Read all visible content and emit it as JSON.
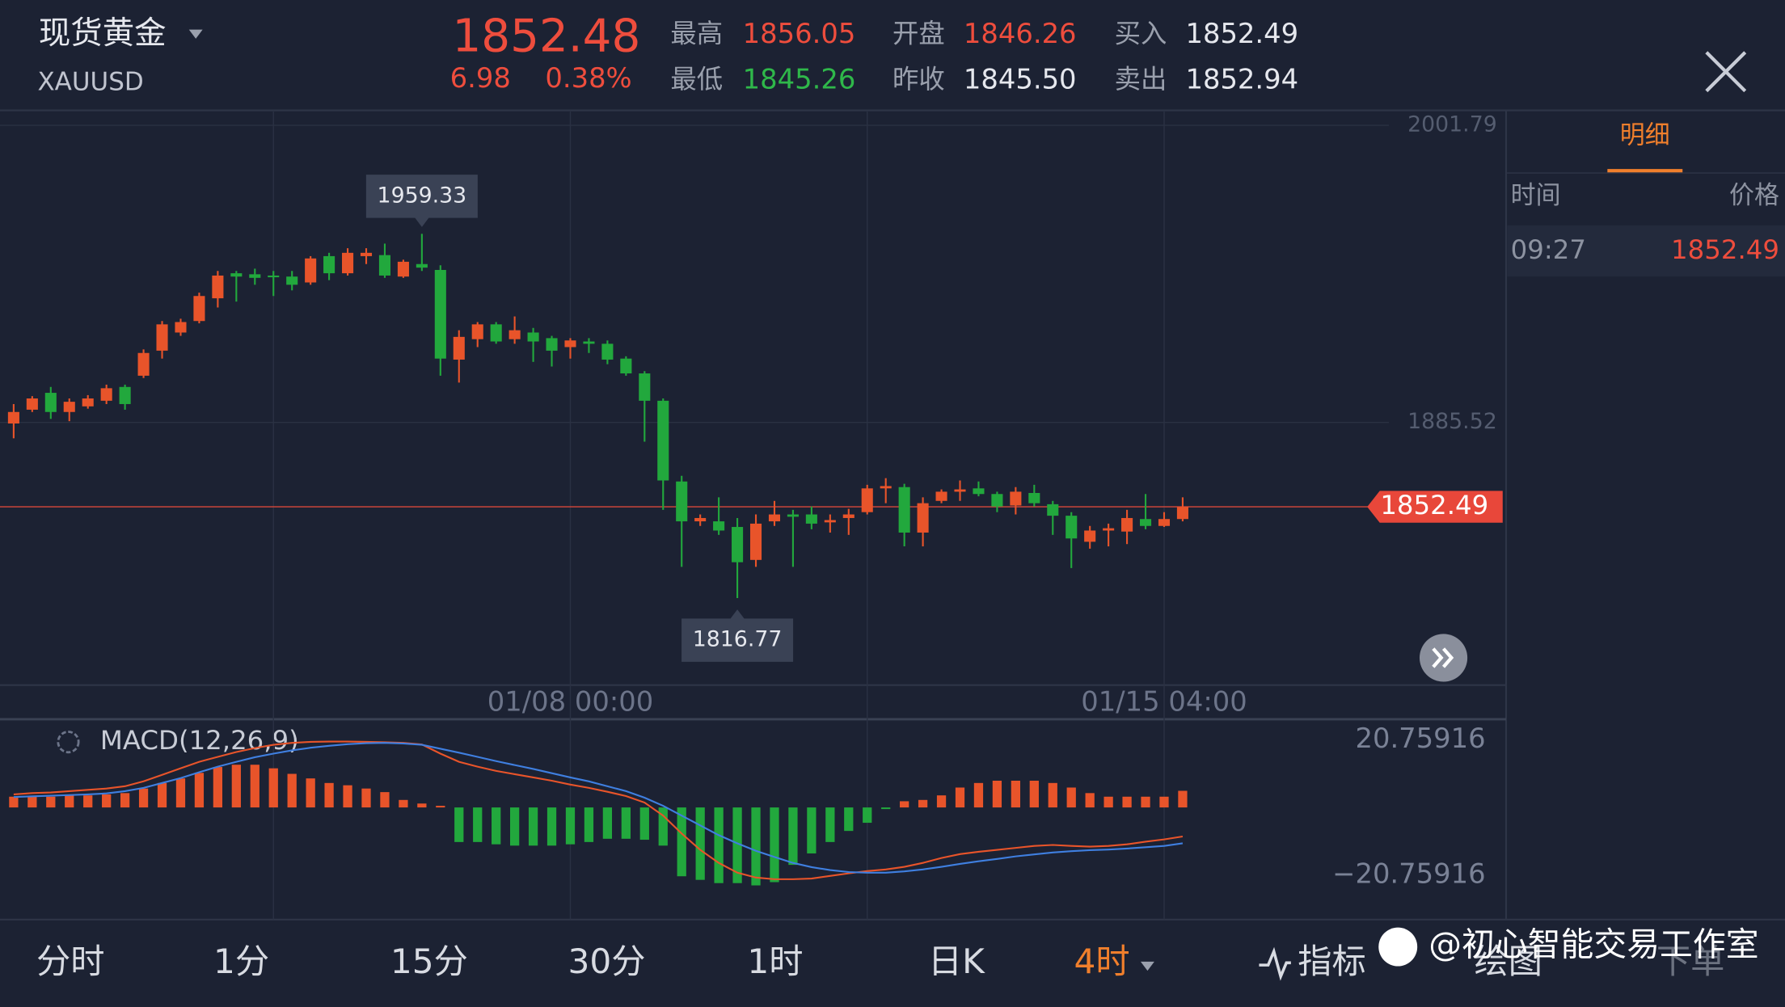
{
  "header": {
    "title": "现货黄金",
    "symbol": "XAUUSD",
    "price": "1852.48",
    "change": "6.98",
    "change_pct": "0.38%",
    "quotes": [
      {
        "label": "最高",
        "value": "1856.05"
      },
      {
        "label": "开盘",
        "value": "1846.26"
      },
      {
        "label": "买入",
        "value": "1852.49"
      },
      {
        "label": "最低",
        "value": "1845.26"
      },
      {
        "label": "昨收",
        "value": "1845.50"
      },
      {
        "label": "卖出",
        "value": "1852.94"
      }
    ]
  },
  "detail_panel": {
    "tab": "明细",
    "columns": [
      "时间",
      "价格"
    ],
    "rows": [
      [
        "09:27",
        "1852.49"
      ]
    ]
  },
  "tabs": [
    "分时",
    "1分",
    "15分",
    "30分",
    "1时",
    "日K",
    "4时"
  ],
  "tools": [
    "指标",
    "绘图",
    "下单"
  ],
  "watermark": "@初心智能交易工作室",
  "chart_data": [
    {
      "type": "candlestick",
      "categories": [
        null,
        null,
        null,
        null,
        null,
        null,
        null,
        null,
        null,
        null,
        null,
        null,
        null,
        null,
        null,
        null,
        null,
        null,
        null,
        null,
        null,
        null,
        null,
        null,
        null,
        null,
        null,
        null,
        null,
        null,
        "01/08 00:00",
        null,
        null,
        null,
        null,
        null,
        null,
        null,
        null,
        null,
        null,
        null,
        null,
        null,
        null,
        null,
        null,
        null,
        null,
        null,
        null,
        null,
        null,
        null,
        null,
        null,
        null,
        null,
        null,
        null,
        null,
        null,
        "01/15 04:00",
        null
      ],
      "open": [
        1885.1,
        1890.5,
        1897.1,
        1889.6,
        1891.8,
        1894.0,
        1899.4,
        1903.8,
        1913.6,
        1920.7,
        1925.2,
        1934.1,
        1943.9,
        1943.5,
        1943.0,
        1942.6,
        1940.3,
        1950.6,
        1943.9,
        1950.6,
        1951.0,
        1942.6,
        1947.5,
        1945.2,
        1910.1,
        1918.1,
        1923.9,
        1918.1,
        1920.7,
        1918.5,
        1915.0,
        1917.2,
        1916.3,
        1910.5,
        1904.7,
        1894.0,
        1862.4,
        1846.8,
        1846.8,
        1844.6,
        1831.7,
        1846.8,
        1849.5,
        1849.5,
        1846.4,
        1848.1,
        1850.4,
        1859.7,
        1860.2,
        1842.4,
        1854.8,
        1858.4,
        1859.7,
        1857.5,
        1853.0,
        1857.9,
        1853.5,
        1849.0,
        1838.8,
        1843.2,
        1842.8,
        1847.7,
        1845.0,
        1847.7
      ],
      "high": [
        1892.7,
        1895.8,
        1899.4,
        1894.9,
        1896.2,
        1900.3,
        1900.3,
        1914.1,
        1925.2,
        1926.1,
        1936.3,
        1944.8,
        1944.8,
        1945.7,
        1944.8,
        1944.8,
        1950.6,
        1951.9,
        1953.7,
        1953.7,
        1955.5,
        1949.2,
        1959.33,
        1947.0,
        1921.6,
        1924.8,
        1924.8,
        1927.0,
        1922.5,
        1919.4,
        1918.5,
        1918.5,
        1917.6,
        1911.4,
        1905.6,
        1894.9,
        1864.6,
        1849.5,
        1856.2,
        1848.1,
        1849.5,
        1854.8,
        1851.3,
        1852.6,
        1849.5,
        1851.7,
        1861.1,
        1863.7,
        1861.5,
        1856.2,
        1859.3,
        1862.8,
        1862.4,
        1858.4,
        1860.2,
        1861.1,
        1854.8,
        1850.4,
        1845.0,
        1845.9,
        1851.3,
        1857.5,
        1850.4,
        1856.2
      ],
      "low": [
        1879.3,
        1889.6,
        1886.9,
        1886.0,
        1890.9,
        1892.7,
        1890.5,
        1902.9,
        1910.5,
        1919.4,
        1924.3,
        1930.5,
        1932.8,
        1939.4,
        1935.0,
        1937.2,
        1939.4,
        1941.2,
        1943.0,
        1947.5,
        1942.1,
        1942.1,
        1944.8,
        1903.8,
        1901.1,
        1915.0,
        1916.3,
        1916.3,
        1909.2,
        1907.4,
        1910.5,
        1912.7,
        1908.3,
        1903.8,
        1878.0,
        1851.3,
        1829.0,
        1845.0,
        1841.5,
        1816.77,
        1829.0,
        1845.0,
        1829.0,
        1843.7,
        1842.4,
        1841.5,
        1849.5,
        1853.9,
        1837.0,
        1837.0,
        1853.9,
        1854.8,
        1856.6,
        1850.4,
        1849.5,
        1852.6,
        1841.5,
        1828.5,
        1836.1,
        1837.0,
        1837.9,
        1843.7,
        1844.6,
        1846.8
      ],
      "close": [
        1889.6,
        1894.9,
        1889.6,
        1893.6,
        1894.9,
        1898.9,
        1892.7,
        1912.7,
        1923.9,
        1924.8,
        1935.0,
        1943.0,
        1942.6,
        1942.1,
        1942.6,
        1939.4,
        1949.7,
        1943.9,
        1951.9,
        1951.9,
        1943.0,
        1948.4,
        1946.1,
        1910.5,
        1919.0,
        1923.9,
        1917.2,
        1921.6,
        1917.2,
        1913.6,
        1917.6,
        1916.3,
        1910.1,
        1904.7,
        1894.0,
        1862.8,
        1846.8,
        1848.1,
        1843.2,
        1830.8,
        1845.9,
        1849.5,
        1848.6,
        1845.9,
        1847.3,
        1849.5,
        1859.7,
        1860.6,
        1842.4,
        1853.9,
        1858.4,
        1859.3,
        1857.5,
        1852.6,
        1858.4,
        1853.9,
        1849.0,
        1840.1,
        1843.2,
        1844.1,
        1848.1,
        1845.0,
        1847.7,
        1852.49
      ],
      "up_color": "#e8542a",
      "down_color": "#22a83d",
      "ylim": [
        1782.7,
        2007.2
      ],
      "yticks": [
        2001.79,
        1885.52
      ],
      "high_label": 1959.33,
      "low_label": 1816.77,
      "last_price": 1852.49,
      "grid": true
    },
    {
      "type": "macd",
      "title": "MACD(12,26,9)",
      "histogram": {
        "values": [
          3.3,
          3.3,
          3.3,
          3.7,
          3.7,
          4.0,
          4.4,
          5.8,
          7.5,
          8.9,
          10.6,
          12.4,
          13.1,
          13.1,
          12.0,
          10.3,
          8.9,
          7.5,
          6.8,
          5.8,
          4.7,
          2.3,
          1.2,
          0.5,
          -10.6,
          -10.6,
          -11.3,
          -11.7,
          -11.7,
          -11.7,
          -11.3,
          -10.6,
          -9.6,
          -9.6,
          -9.9,
          -11.7,
          -21.1,
          -22.2,
          -23.2,
          -23.2,
          -23.9,
          -22.9,
          -17.6,
          -14.1,
          -10.6,
          -7.2,
          -4.7,
          -0.5,
          1.9,
          2.3,
          3.7,
          6.1,
          7.5,
          8.2,
          8.2,
          8.2,
          7.5,
          6.1,
          4.4,
          3.3,
          3.3,
          3.3,
          3.3,
          5.1
        ],
        "up_color": "#e8542a",
        "down_color": "#22a83d"
      },
      "series": [
        {
          "color": "#e8542a",
          "values": [
            4.0,
            4.4,
            4.6,
            5.0,
            5.4,
            5.8,
            6.5,
            8.0,
            10.0,
            12.0,
            14.0,
            15.5,
            17.0,
            18.2,
            19.2,
            19.8,
            20.1,
            20.2,
            20.2,
            20.1,
            20.0,
            19.8,
            19.3,
            16.5,
            14.0,
            12.5,
            11.2,
            10.2,
            9.2,
            8.2,
            7.0,
            6.0,
            4.8,
            3.5,
            1.5,
            -2.5,
            -8.0,
            -13.0,
            -17.0,
            -20.0,
            -21.5,
            -22.0,
            -22.0,
            -21.8,
            -21.0,
            -20.2,
            -19.5,
            -19.0,
            -18.2,
            -17.0,
            -15.5,
            -14.3,
            -13.6,
            -13.0,
            -12.4,
            -11.8,
            -11.5,
            -11.8,
            -12.0,
            -11.8,
            -11.3,
            -10.5,
            -9.8,
            -8.9
          ]
        },
        {
          "color": "#3f7fe0",
          "values": [
            3.2,
            3.4,
            3.6,
            3.8,
            4.0,
            4.3,
            5.0,
            6.0,
            7.5,
            9.0,
            10.8,
            12.5,
            14.0,
            15.4,
            16.5,
            17.5,
            18.3,
            18.9,
            19.4,
            19.7,
            19.8,
            19.6,
            19.2,
            18.0,
            16.8,
            15.5,
            14.2,
            13.0,
            11.8,
            10.5,
            9.2,
            8.0,
            6.5,
            5.0,
            3.0,
            0.5,
            -2.5,
            -5.5,
            -8.5,
            -11.0,
            -13.3,
            -15.2,
            -17.0,
            -18.3,
            -19.2,
            -19.8,
            -20.0,
            -20.0,
            -19.6,
            -19.0,
            -18.2,
            -17.3,
            -16.5,
            -15.8,
            -15.0,
            -14.4,
            -13.8,
            -13.4,
            -13.1,
            -12.9,
            -12.6,
            -12.2,
            -11.8,
            -11.0
          ]
        }
      ],
      "ylim": [
        -34.37,
        27.04
      ],
      "yticks": [
        20.75916,
        {
          "value": -20.75916,
          "label": "−20.75916"
        }
      ]
    }
  ]
}
